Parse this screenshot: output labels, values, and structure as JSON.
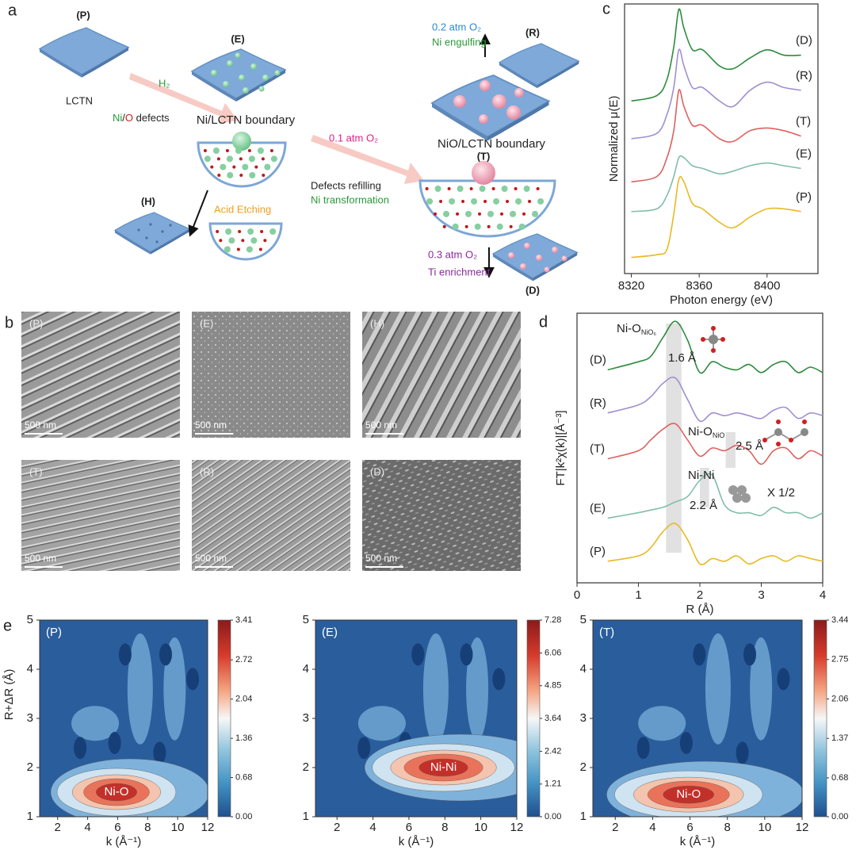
{
  "schematic": {
    "label": "a",
    "p_label": "(P)",
    "p_name": "LCTN",
    "h2": "H₂",
    "defects_ni": "Ni",
    "defects_slash": "/",
    "defects_o": "O",
    "defects_rest": " defects",
    "e_label": "(E)",
    "e_name": "Ni/LCTN boundary",
    "h_label": "(H)",
    "etching": "Acid Etching",
    "o2_01": "0.1 atm O₂",
    "refill": "Defects refilling",
    "transform": "Ni transformation",
    "t_name": "NiO/LCTN boundary",
    "t_label": "(T)",
    "o2_02": "0.2 atm O₂",
    "engulf": "Ni engulfing",
    "r_label": "(R)",
    "o2_03": "0.3 atm O₂",
    "ti": "Ti enrichment",
    "d_label": "(D)"
  },
  "sem": {
    "label": "b",
    "panels": [
      {
        "label": "(P)",
        "scale": "500 nm"
      },
      {
        "label": "(E)",
        "scale": "500 nm"
      },
      {
        "label": "(H)",
        "scale": "500 nm"
      },
      {
        "label": "(T)",
        "scale": "500 nm"
      },
      {
        "label": "(R)",
        "scale": "500 nm"
      },
      {
        "label": "(D)",
        "scale": "500 nm"
      }
    ]
  },
  "chart_data": [
    {
      "type": "line",
      "panel_label": "c",
      "xlabel": "Photon energy (eV)",
      "ylabel": "Normalized μ(E)",
      "xlim": [
        8316,
        8430
      ],
      "ylim": [
        0,
        10
      ],
      "xticks": [
        8320,
        8360,
        8400
      ],
      "x": [
        8320,
        8335,
        8341,
        8345,
        8348,
        8351,
        8356,
        8362,
        8372,
        8380,
        8390,
        8400,
        8410,
        8420
      ],
      "series": [
        {
          "name": "(D)",
          "color": "#2e8b3e",
          "values": [
            6.4,
            6.6,
            7.2,
            8.4,
            9.8,
            9.1,
            8.3,
            8.3,
            7.7,
            7.6,
            8.0,
            8.3,
            8.1,
            8.1
          ]
        },
        {
          "name": "(R)",
          "color": "#a08fd0",
          "values": [
            5.0,
            5.2,
            5.9,
            6.9,
            8.3,
            7.7,
            6.9,
            6.9,
            6.4,
            6.2,
            6.8,
            7.1,
            6.9,
            6.8
          ]
        },
        {
          "name": "(T)",
          "color": "#e06060",
          "values": [
            3.4,
            3.6,
            4.3,
            5.3,
            6.8,
            6.2,
            5.5,
            5.5,
            5.0,
            4.9,
            5.3,
            5.4,
            5.3,
            5.1
          ]
        },
        {
          "name": "(E)",
          "color": "#7fbfa8",
          "values": [
            2.3,
            2.4,
            2.9,
            3.6,
            4.3,
            4.3,
            4.0,
            3.9,
            3.7,
            3.8,
            4.0,
            4.1,
            4.0,
            3.9
          ]
        },
        {
          "name": "(P)",
          "color": "#e8b923",
          "values": [
            0.6,
            0.7,
            0.9,
            2.2,
            3.5,
            3.4,
            2.6,
            2.4,
            1.9,
            1.7,
            2.1,
            2.4,
            2.4,
            2.3
          ]
        }
      ]
    },
    {
      "type": "line",
      "panel_label": "d",
      "xlabel": "R (Å)",
      "ylabel": "FT|k²χ(k)|[Å⁻³]",
      "xlim": [
        0,
        4
      ],
      "ylim": [
        0,
        10
      ],
      "xticks": [
        0,
        1,
        2,
        3,
        4
      ],
      "x": [
        0.5,
        1.0,
        1.2,
        1.4,
        1.6,
        1.8,
        2.0,
        2.2,
        2.4,
        2.6,
        2.8,
        3.0,
        3.2,
        3.4,
        3.6,
        3.8,
        4.0
      ],
      "series": [
        {
          "name": "(D)",
          "color": "#2e8b3e",
          "values": [
            7.9,
            8.2,
            8.4,
            9.1,
            9.7,
            9.0,
            7.8,
            8.2,
            8.0,
            7.9,
            8.1,
            7.8,
            8.1,
            8.2,
            7.8,
            8.0,
            7.8
          ]
        },
        {
          "name": "(R)",
          "color": "#a08fd0",
          "values": [
            6.3,
            6.6,
            6.9,
            7.4,
            7.6,
            6.8,
            6.0,
            6.3,
            6.2,
            6.3,
            6.2,
            6.1,
            6.4,
            6.5,
            6.1,
            6.3,
            6.2
          ]
        },
        {
          "name": "(T)",
          "color": "#e06060",
          "values": [
            4.6,
            4.9,
            5.3,
            5.7,
            5.9,
            5.3,
            4.7,
            5.0,
            4.9,
            5.1,
            4.9,
            4.4,
            4.9,
            5.0,
            4.6,
            4.9,
            4.7
          ]
        },
        {
          "name": "(E)",
          "color": "#7fbfa8",
          "values": [
            2.4,
            2.6,
            2.7,
            2.8,
            3.0,
            3.2,
            3.8,
            4.0,
            2.9,
            2.6,
            2.6,
            2.5,
            2.8,
            2.6,
            2.6,
            2.4,
            2.6
          ]
        },
        {
          "name": "(P)",
          "color": "#e8b923",
          "values": [
            0.8,
            1.0,
            1.3,
            1.9,
            2.2,
            1.6,
            0.7,
            0.9,
            0.8,
            1.0,
            0.7,
            0.9,
            1.0,
            0.8,
            1.0,
            0.9,
            0.8
          ]
        }
      ],
      "annotations": [
        {
          "text": "Ni-O",
          "sub": "NiO₆"
        },
        {
          "text": "1.6 Å"
        },
        {
          "text": "Ni-O",
          "sub": "NiO"
        },
        {
          "text": "2.5 Å"
        },
        {
          "text": "Ni-Ni"
        },
        {
          "text": "2.2 Å"
        },
        {
          "text": "X 1/2"
        }
      ]
    },
    {
      "type": "heatmap",
      "panel_label": "e",
      "label": "(P)",
      "annotation": "Ni-O",
      "xlabel": "k (Å⁻¹)",
      "ylabel": "R+ΔR (Å)",
      "xlim": [
        0.8,
        12
      ],
      "ylim": [
        1,
        5
      ],
      "xticks": [
        2,
        4,
        6,
        8,
        10,
        12
      ],
      "yticks": [
        1,
        2,
        3,
        4,
        5
      ],
      "clim": [
        0,
        3.41
      ],
      "cticks": [
        {
          "value": 0,
          "label": "0.00"
        },
        0.68,
        1.36,
        2.04,
        2.72,
        3.41
      ]
    },
    {
      "type": "heatmap",
      "label": "(E)",
      "annotation": "Ni-Ni",
      "xlabel": "k (Å⁻¹)",
      "xlim": [
        0.8,
        12
      ],
      "ylim": [
        1,
        5
      ],
      "xticks": [
        2,
        4,
        6,
        8,
        10,
        12
      ],
      "yticks": [
        1,
        2,
        3,
        4,
        5
      ],
      "clim": [
        0,
        7.28
      ],
      "cticks": [
        {
          "value": 0,
          "label": "0.00"
        },
        1.21,
        2.42,
        3.64,
        4.85,
        6.06,
        7.28
      ]
    },
    {
      "type": "heatmap",
      "label": "(T)",
      "annotation": "Ni-O",
      "xlabel": "k (Å⁻¹)",
      "xlim": [
        0.8,
        12
      ],
      "ylim": [
        1,
        5
      ],
      "xticks": [
        2,
        4,
        6,
        8,
        10,
        12
      ],
      "yticks": [
        1,
        2,
        3,
        4,
        5
      ],
      "clim": [
        0,
        3.44
      ],
      "cticks": [
        {
          "value": 0,
          "label": "0.00"
        },
        0.68,
        1.37,
        2.06,
        2.75,
        3.44
      ]
    }
  ]
}
